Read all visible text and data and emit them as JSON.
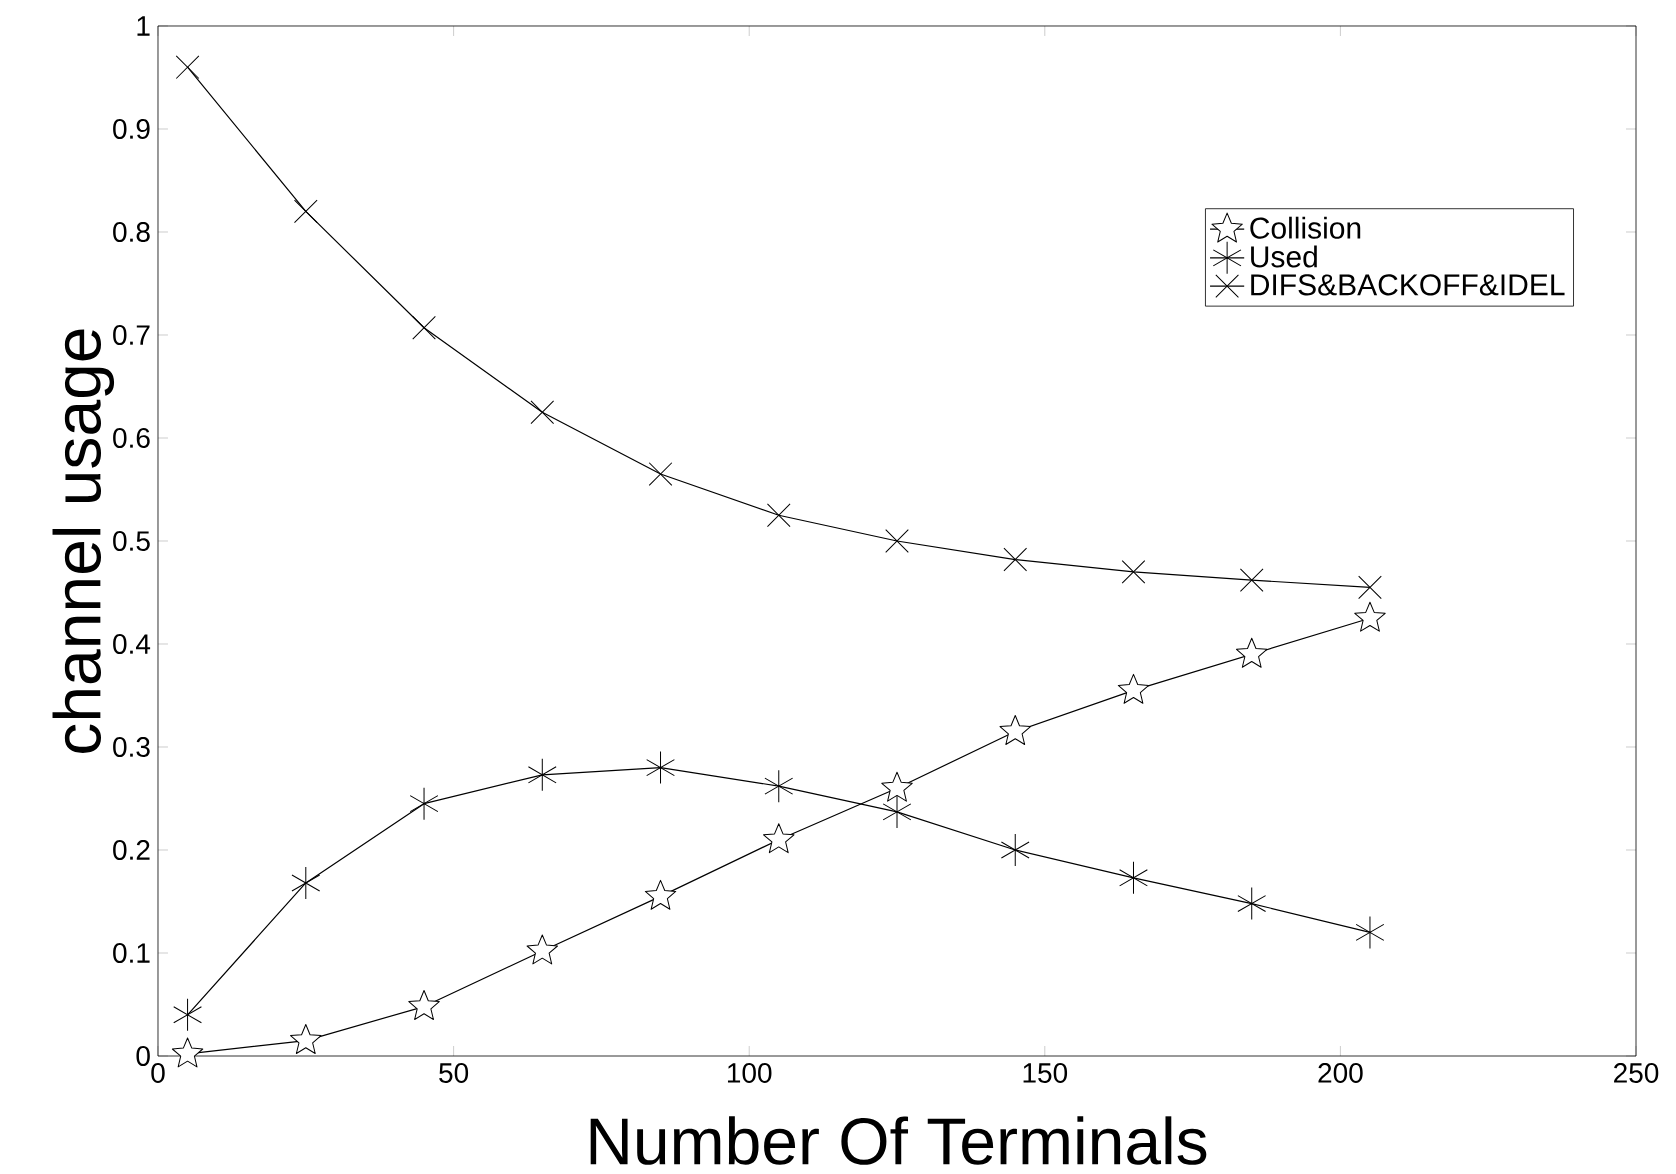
{
  "chart_data": {
    "type": "line",
    "xlabel": "Number Of Terminals",
    "ylabel": "channel usage",
    "x": [
      5,
      25,
      45,
      65,
      85,
      105,
      125,
      145,
      165,
      185,
      205
    ],
    "series": [
      {
        "name": "Collision",
        "color": "#000000",
        "marker": "star",
        "values": [
          0.002,
          0.015,
          0.048,
          0.102,
          0.155,
          0.21,
          0.26,
          0.315,
          0.355,
          0.39,
          0.425
        ]
      },
      {
        "name": "Used",
        "color": "#000000",
        "marker": "cross",
        "values": [
          0.04,
          0.168,
          0.245,
          0.273,
          0.28,
          0.262,
          0.237,
          0.2,
          0.173,
          0.148,
          0.12
        ]
      },
      {
        "name": "DIFS&BACKOFF&IDEL",
        "color": "#000000",
        "marker": "cross",
        "values": [
          0.96,
          0.82,
          0.707,
          0.625,
          0.565,
          0.525,
          0.5,
          0.482,
          0.47,
          0.462,
          0.455
        ]
      }
    ],
    "xlim": [
      0,
      250
    ],
    "ylim": [
      0,
      1
    ],
    "xticks": [
      0,
      50,
      100,
      150,
      200,
      250
    ],
    "yticks": [
      0,
      0.1,
      0.2,
      0.3,
      0.4,
      0.5,
      0.6,
      0.7,
      0.8,
      0.9,
      1
    ],
    "grid": false,
    "legend": "top right",
    "line_style": "solid"
  }
}
